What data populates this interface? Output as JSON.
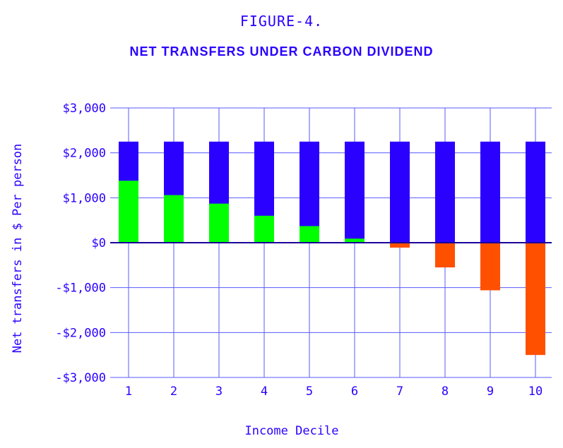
{
  "figure_label": "FIGURE-4.",
  "chart_data": {
    "type": "bar",
    "title": "NET TRANSFERS UNDER CARBON DIVIDEND",
    "xlabel": "Income Decile",
    "ylabel": "Net transfers in $ Per person",
    "categories": [
      "1",
      "2",
      "3",
      "4",
      "5",
      "6",
      "7",
      "8",
      "9",
      "10"
    ],
    "ylim": [
      -3000,
      3000
    ],
    "yticks": [
      3000,
      2000,
      1000,
      0,
      -1000,
      -2000,
      -3000
    ],
    "ytick_labels": [
      "$3,000",
      "$2,000",
      "$1,000",
      "$0",
      "-$1,000",
      "-$2,000",
      "-$3,000"
    ],
    "grid": true,
    "dividend_per_person": 2250,
    "net_transfer": [
      1380,
      1060,
      870,
      600,
      370,
      90,
      -110,
      -550,
      -1060,
      -2500
    ],
    "colors": {
      "dividend": "#2a00ff",
      "positive": "#00ff00",
      "negative": "#ff5000",
      "axis": "#2a00ff",
      "grid": "#5a5aff"
    }
  }
}
